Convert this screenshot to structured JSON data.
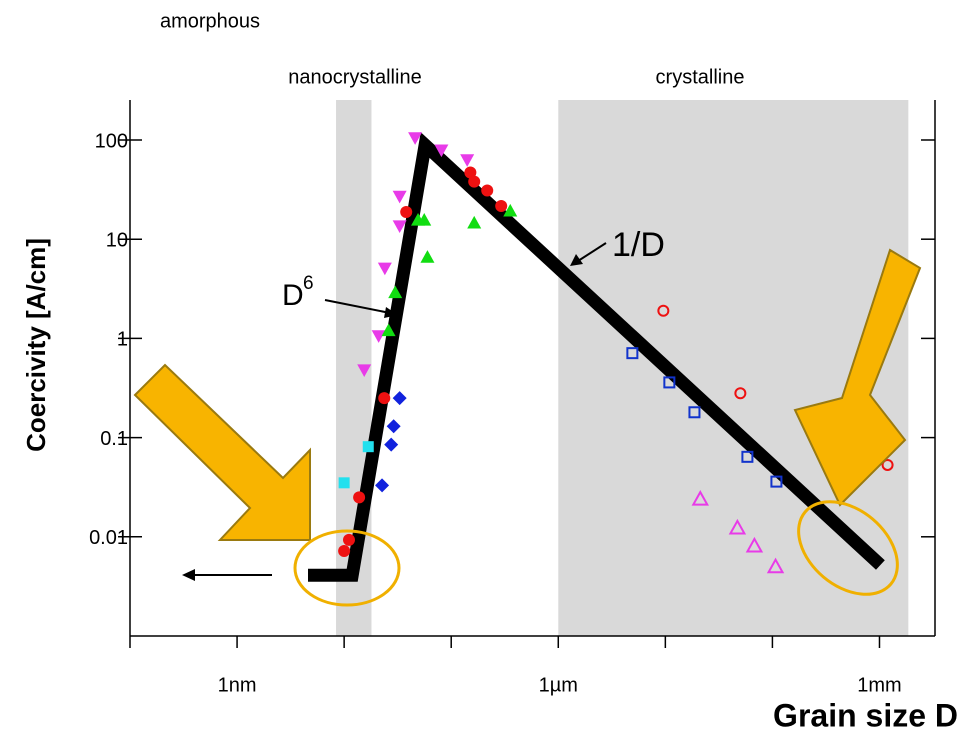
{
  "chart_data": {
    "type": "scatter",
    "x_label": "Grain size D",
    "y_label": "Coercivity [A/cm]",
    "log_x": true,
    "log_y": true,
    "xlim": [
      0.1,
      3300000
    ],
    "ylim": [
      0.001,
      253
    ],
    "xticks": [
      {
        "value": 1,
        "label": "1nm"
      },
      {
        "value": 1000,
        "label": "1µm"
      },
      {
        "value": 1000000,
        "label": "1mm"
      }
    ],
    "minor_xticks": [
      0.1,
      10,
      100,
      10000,
      100000
    ],
    "yticks": [
      0.01,
      0.1,
      1,
      10,
      100
    ],
    "region_labels": [
      "amorphous",
      "nanocrystalline",
      "crystalline"
    ],
    "shaded_ranges": [
      [
        8.4,
        18
      ],
      [
        1000,
        1860000
      ]
    ],
    "shade_color": "#d9d9d9",
    "fit_line": {
      "x": [
        4.6,
        11.9,
        57,
        1020000
      ],
      "y": [
        0.0041,
        0.0041,
        89,
        0.0052
      ],
      "color": "#000000"
    },
    "annotations": [
      {
        "text": "D",
        "sup": "6"
      },
      {
        "text": "1/D"
      }
    ],
    "series": [
      {
        "marker": "triangle-down",
        "color": "#e83be8",
        "x": [
          46,
          81,
          141,
          33,
          33,
          24,
          21,
          15.4
        ],
        "y": [
          105,
          79,
          63,
          27,
          13.6,
          5.1,
          1.06,
          0.48
        ]
      },
      {
        "marker": "circle",
        "color": "#ee1111",
        "x": [
          38,
          151,
          164,
          217,
          293,
          23.7,
          13.8,
          11.1,
          10
        ],
        "y": [
          18.8,
          47,
          38,
          31,
          21.6,
          0.25,
          0.025,
          0.0093,
          0.0072
        ]
      },
      {
        "marker": "triangle",
        "color": "#11dd11",
        "x": [
          49,
          56,
          164,
          356,
          60,
          30,
          26
        ],
        "y": [
          15.6,
          15.6,
          14.6,
          19.3,
          6.6,
          2.9,
          1.2
        ]
      },
      {
        "marker": "diamond",
        "color": "#1122dd",
        "x": [
          33,
          29,
          27.5,
          22.6
        ],
        "y": [
          0.25,
          0.13,
          0.085,
          0.033
        ]
      },
      {
        "marker": "square",
        "color": "#22e0ee",
        "x": [
          16.8,
          10
        ],
        "y": [
          0.081,
          0.035
        ]
      },
      {
        "marker": "square-open",
        "color": "#1133cc",
        "x": [
          4920,
          10900,
          18700,
          58400,
          109000
        ],
        "y": [
          0.71,
          0.36,
          0.18,
          0.064,
          0.036
        ]
      },
      {
        "marker": "circle-open",
        "color": "#ee1111",
        "x": [
          9580,
          50200,
          1190000
        ],
        "y": [
          1.9,
          0.28,
          0.053
        ]
      },
      {
        "marker": "triangle-open",
        "color": "#e83be8",
        "x": [
          21200,
          47100,
          67900,
          107000
        ],
        "y": [
          0.024,
          0.0123,
          0.0081,
          0.005
        ]
      }
    ]
  }
}
